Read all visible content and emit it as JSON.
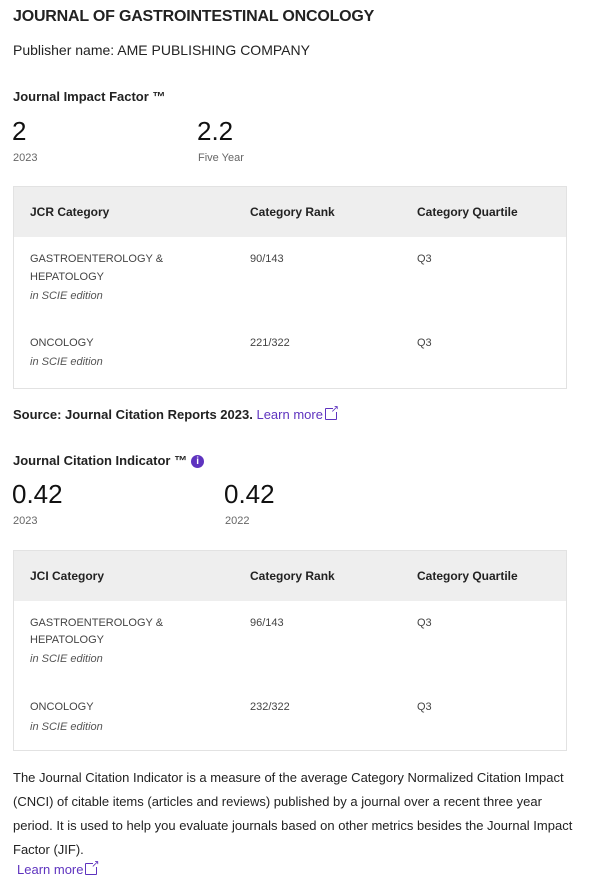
{
  "journal_title": "JOURNAL OF GASTROINTESTINAL ONCOLOGY",
  "publisher": "Publisher name: AME PUBLISHING COMPANY",
  "jif": {
    "heading": "Journal Impact Factor ™",
    "metrics": [
      {
        "value": "2",
        "label": "2023"
      },
      {
        "value": "2.2",
        "label": "Five Year"
      }
    ],
    "table": {
      "headers": [
        "JCR Category",
        "Category Rank",
        "Category Quartile"
      ],
      "rows": [
        {
          "category_line1": "GASTROENTEROLOGY &",
          "category_line2": "HEPATOLOGY",
          "edition": "in SCIE edition",
          "rank": "90/143",
          "quartile": "Q3"
        },
        {
          "category_line1": "ONCOLOGY",
          "edition": "in SCIE edition",
          "rank": "221/322",
          "quartile": "Q3"
        }
      ]
    },
    "source_text": "Source: Journal Citation Reports  2023.",
    "learn_more": "Learn more"
  },
  "jci": {
    "heading": "Journal Citation Indicator ™",
    "info_icon": "info-icon",
    "metrics": [
      {
        "value": "0.42",
        "label": "2023"
      },
      {
        "value": "0.42",
        "label": "2022"
      }
    ],
    "table": {
      "headers": [
        "JCI Category",
        "Category Rank",
        "Category Quartile"
      ],
      "rows": [
        {
          "category_line1": "GASTROENTEROLOGY &",
          "category_line2": "HEPATOLOGY",
          "edition": "in SCIE edition",
          "rank": "96/143",
          "quartile": "Q3"
        },
        {
          "category_line1": "ONCOLOGY",
          "edition": "in SCIE edition",
          "rank": "232/322",
          "quartile": "Q3"
        }
      ]
    },
    "description": "The Journal Citation Indicator is a measure of the average Category Normalized Citation Impact (CNCI) of citable items (articles and reviews) published by a journal over a recent three year period. It is used to help you evaluate journals based on other metrics besides the Journal Impact Factor (JIF).",
    "learn_more": "Learn more"
  },
  "colors": {
    "accent": "#5e33bf",
    "table_header_bg": "#eeeeee"
  }
}
